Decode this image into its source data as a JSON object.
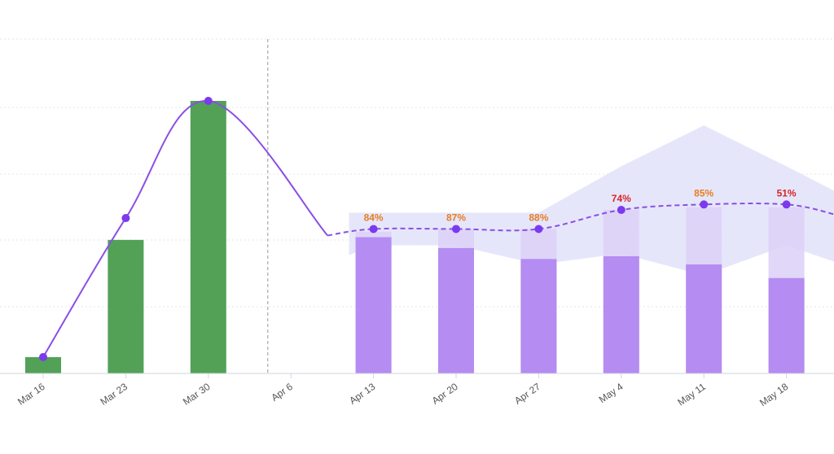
{
  "chart_data": {
    "type": "bar",
    "categories": [
      "Mar 16",
      "Mar 23",
      "Mar 30",
      "Apr 6",
      "Apr 13",
      "Apr 20",
      "Apr 27",
      "May 4",
      "May 11",
      "May 18"
    ],
    "ylim": [
      0,
      100
    ],
    "grid": true,
    "legend": "none",
    "actual_bars": [
      6,
      49,
      100,
      null,
      null,
      null,
      null,
      null,
      null,
      null
    ],
    "forecast_bars": [
      null,
      null,
      null,
      null,
      50,
      46,
      42,
      43,
      40,
      35
    ],
    "forecast_upper_bars": [
      null,
      null,
      null,
      null,
      52,
      53,
      53,
      60,
      61,
      61
    ],
    "trend_line": [
      6,
      57,
      100,
      null,
      53,
      53,
      53,
      60,
      62,
      62
    ],
    "band_upper": [
      null,
      null,
      null,
      null,
      59,
      59,
      59,
      76,
      91,
      76
    ],
    "band_lower": [
      null,
      null,
      null,
      null,
      47,
      47,
      40,
      44,
      36,
      47
    ],
    "data_labels": [
      "",
      "",
      "",
      "",
      "84%",
      "87%",
      "88%",
      "74%",
      "85%",
      "51%"
    ],
    "label_colors": [
      "",
      "",
      "",
      "",
      "#e67e22",
      "#e67e22",
      "#e67e22",
      "#d62728",
      "#e67e22",
      "#d62728"
    ],
    "divider_after": "Mar 30",
    "colors": {
      "actual": "#52a157",
      "forecast": "#b48cf2",
      "forecast_upper": "#dcd0f7",
      "band": "#e3e3fb",
      "line": "#8a4fe6",
      "marker": "#7c3aed",
      "divider": "#999999",
      "grid": "#e6e6e6",
      "axis": "#cfd6df"
    }
  }
}
